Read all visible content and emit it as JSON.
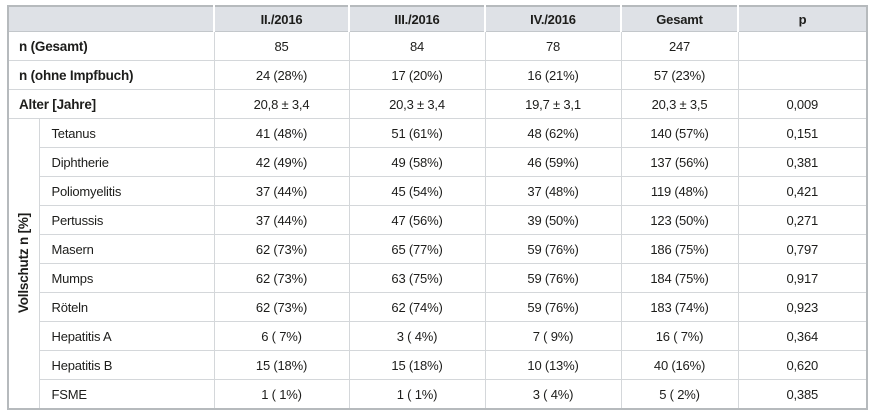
{
  "table": {
    "header": {
      "corner": "",
      "columns": [
        "II./2016",
        "III./2016",
        "IV./2016",
        "Gesamt",
        "p"
      ]
    },
    "group_label": "Vollschutz n [%]",
    "rows": [
      {
        "label": "n (Gesamt)",
        "values": [
          "85",
          "84",
          "78",
          "247",
          ""
        ]
      },
      {
        "label": "n (ohne Impfbuch)",
        "values": [
          "24 (28%)",
          "17 (20%)",
          "16 (21%)",
          "57 (23%)",
          ""
        ]
      },
      {
        "label": "Alter [Jahre]",
        "values": [
          "20,8 ± 3,4",
          "20,3 ± 3,4",
          "19,7 ± 3,1",
          "20,3 ± 3,5",
          "0,009"
        ]
      }
    ],
    "group_rows": [
      {
        "label": "Tetanus",
        "values": [
          "41 (48%)",
          "51 (61%)",
          "48 (62%)",
          "140 (57%)",
          "0,151"
        ]
      },
      {
        "label": "Diphtherie",
        "values": [
          "42 (49%)",
          "49 (58%)",
          "46 (59%)",
          "137 (56%)",
          "0,381"
        ]
      },
      {
        "label": "Poliomyelitis",
        "values": [
          "37 (44%)",
          "45 (54%)",
          "37 (48%)",
          "119 (48%)",
          "0,421"
        ]
      },
      {
        "label": "Pertussis",
        "values": [
          "37 (44%)",
          "47 (56%)",
          "39 (50%)",
          "123 (50%)",
          "0,271"
        ]
      },
      {
        "label": "Masern",
        "values": [
          "62 (73%)",
          "65 (77%)",
          "59 (76%)",
          "186 (75%)",
          "0,797"
        ]
      },
      {
        "label": "Mumps",
        "values": [
          "62 (73%)",
          "63 (75%)",
          "59 (76%)",
          "184 (75%)",
          "0,917"
        ]
      },
      {
        "label": "Röteln",
        "values": [
          "62 (73%)",
          "62 (74%)",
          "59 (76%)",
          "183 (74%)",
          "0,923"
        ]
      },
      {
        "label": "Hepatitis A",
        "values": [
          "6 ( 7%)",
          "3 ( 4%)",
          "7 ( 9%)",
          "16 ( 7%)",
          "0,364"
        ]
      },
      {
        "label": "Hepatitis B",
        "values": [
          "15 (18%)",
          "15 (18%)",
          "10 (13%)",
          "40 (16%)",
          "0,620"
        ]
      },
      {
        "label": "FSME",
        "values": [
          "1 ( 1%)",
          "1 ( 1%)",
          "3 ( 4%)",
          "5 ( 2%)",
          "0,385"
        ]
      }
    ],
    "colors": {
      "header_bg": "#dee1e6",
      "border_inner": "#d4d7da",
      "border_outer": "#b6babd",
      "text": "#1d1d1b"
    }
  }
}
